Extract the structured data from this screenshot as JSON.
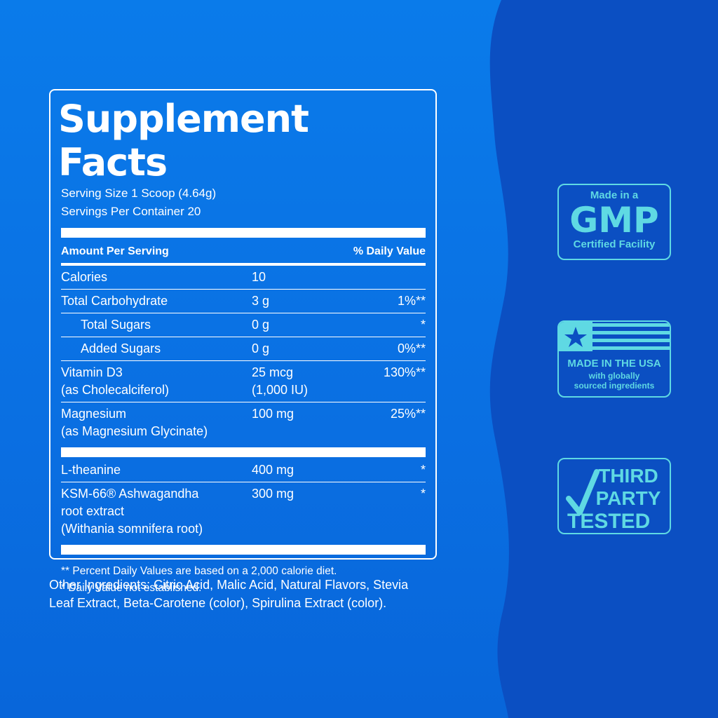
{
  "facts": {
    "title": "Supplement Facts",
    "serving_size": "Serving Size 1 Scoop (4.64g)",
    "servings_per_container": "Servings Per Container 20",
    "header": {
      "amount": "Amount Per Serving",
      "daily_value": "% Daily Value"
    },
    "sections": [
      [
        {
          "name": [
            "Calories"
          ],
          "amount": [
            "10"
          ]
        },
        {
          "name": [
            "Total Carbohydrate"
          ],
          "amount": [
            "3 g"
          ],
          "dv": "1%**"
        },
        {
          "name": [
            "Total Sugars"
          ],
          "amount": [
            "0 g"
          ],
          "dv": "*",
          "indent": true
        },
        {
          "name": [
            "Added Sugars"
          ],
          "amount": [
            "0 g"
          ],
          "dv": "0%**",
          "indent": true
        },
        {
          "name": [
            "Vitamin D3",
            "(as Cholecalciferol)"
          ],
          "amount": [
            "25 mcg",
            "(1,000 IU)"
          ],
          "dv": "130%**"
        },
        {
          "name": [
            "Magnesium",
            "(as Magnesium Glycinate)"
          ],
          "amount": [
            "100 mg"
          ],
          "dv": "25%**"
        }
      ],
      [
        {
          "name": [
            "L-theanine"
          ],
          "amount": [
            "400 mg"
          ],
          "dv": "*"
        },
        {
          "name": [
            "KSM-66® Ashwagandha",
            "root extract",
            "(Withania somnifera root)"
          ],
          "amount": [
            "300 mg"
          ],
          "dv": "*"
        }
      ]
    ],
    "footnotes": [
      "** Percent Daily Values are based on a 2,000 calorie diet.",
      "* Daily Value not established."
    ]
  },
  "other_ingredients": "Other Ingredients: Citric Acid, Malic Acid, Natural Flavors, Stevia Leaf Extract, Beta-Carotene (color), Spirulina Extract (color).",
  "badges": [
    {
      "lines": [
        "Made in a",
        "GMP",
        "Certified Facility"
      ]
    },
    {
      "lines": [
        "MADE IN THE USA",
        "with globally",
        "sourced ingredients"
      ]
    },
    {
      "lines": [
        "THIRD",
        "PARTY",
        "TESTED"
      ]
    }
  ]
}
